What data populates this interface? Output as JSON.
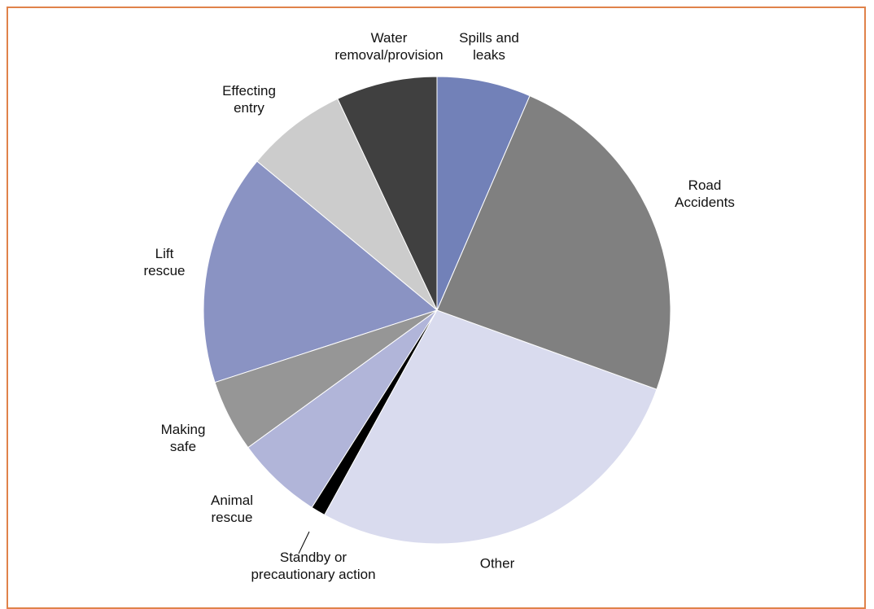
{
  "chart_data": {
    "type": "pie",
    "categories": [
      "Spills and leaks",
      "Road Accidents",
      "Other",
      "Standby or precautionary action",
      "Animal rescue",
      "Making safe",
      "Lift rescue",
      "Effecting entry",
      "Water removal/provision"
    ],
    "values": [
      6.5,
      24,
      27.5,
      1,
      6,
      5,
      16,
      7,
      7
    ],
    "colors": [
      "#7281b8",
      "#808080",
      "#d9dbee",
      "#000000",
      "#b1b5d9",
      "#969696",
      "#8a93c3",
      "#cccccc",
      "#404040"
    ]
  }
}
